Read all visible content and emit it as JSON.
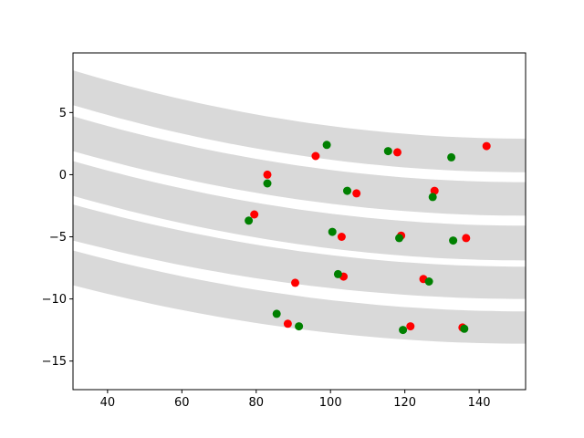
{
  "chart_data": {
    "type": "scatter",
    "title": "",
    "xlabel": "",
    "ylabel": "",
    "xlim": [
      30.7,
      152.5
    ],
    "ylim": [
      -17.3,
      9.8
    ],
    "grid": false,
    "xticks": [
      40,
      60,
      80,
      100,
      120,
      140
    ],
    "yticks": [
      5,
      0,
      -5,
      -10,
      -15
    ],
    "xtick_labels": [
      "40",
      "60",
      "80",
      "100",
      "120",
      "140"
    ],
    "ytick_labels": [
      "5",
      "0",
      "−5",
      "−10",
      "−15"
    ],
    "bands": [
      {
        "upper": [
          [
            30.7,
            8.4
          ],
          [
            152.5,
            2.9
          ]
        ],
        "lower": [
          [
            30.7,
            5.6
          ],
          [
            152.5,
            0.2
          ]
        ]
      },
      {
        "upper": [
          [
            30.7,
            4.7
          ],
          [
            152.5,
            -0.6
          ]
        ],
        "lower": [
          [
            30.7,
            1.9
          ],
          [
            152.5,
            -3.3
          ]
        ]
      },
      {
        "upper": [
          [
            30.7,
            1.1
          ],
          [
            152.5,
            -4.1
          ]
        ],
        "lower": [
          [
            30.7,
            -1.7
          ],
          [
            152.5,
            -6.9
          ]
        ]
      },
      {
        "upper": [
          [
            30.7,
            -2.4
          ],
          [
            152.5,
            -7.4
          ]
        ],
        "lower": [
          [
            30.7,
            -5.3
          ],
          [
            152.5,
            -10.0
          ]
        ]
      },
      {
        "upper": [
          [
            30.7,
            -6.1
          ],
          [
            152.5,
            -11.0
          ]
        ],
        "lower": [
          [
            30.7,
            -8.9
          ],
          [
            152.5,
            -13.6
          ]
        ]
      }
    ],
    "band_color": "#d9d9d9",
    "series": [
      {
        "color": "#ff0000",
        "points": [
          [
            96,
            1.5
          ],
          [
            118,
            1.8
          ],
          [
            142,
            2.3
          ],
          [
            83,
            0.0
          ],
          [
            107,
            -1.5
          ],
          [
            128,
            -1.3
          ],
          [
            79.5,
            -3.2
          ],
          [
            103,
            -5.0
          ],
          [
            119,
            -4.9
          ],
          [
            136.5,
            -5.1
          ],
          [
            90.5,
            -8.7
          ],
          [
            103.5,
            -8.2
          ],
          [
            125,
            -8.4
          ],
          [
            88.5,
            -12.0
          ],
          [
            121.5,
            -12.2
          ],
          [
            135.5,
            -12.3
          ]
        ]
      },
      {
        "color": "#008000",
        "points": [
          [
            99,
            2.4
          ],
          [
            115.5,
            1.9
          ],
          [
            132.5,
            1.4
          ],
          [
            83,
            -0.7
          ],
          [
            104.5,
            -1.3
          ],
          [
            127.5,
            -1.8
          ],
          [
            78,
            -3.7
          ],
          [
            100.5,
            -4.6
          ],
          [
            118.5,
            -5.1
          ],
          [
            133,
            -5.3
          ],
          [
            102,
            -8.0
          ],
          [
            126.5,
            -8.6
          ],
          [
            85.5,
            -11.2
          ],
          [
            91.5,
            -12.2
          ],
          [
            119.5,
            -12.5
          ],
          [
            136,
            -12.4
          ]
        ]
      }
    ]
  }
}
